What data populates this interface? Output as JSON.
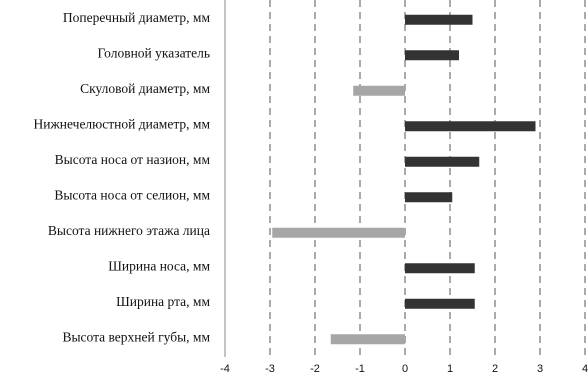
{
  "chart_data": {
    "type": "bar",
    "orientation": "horizontal",
    "categories": [
      "Поперечный диаметр, мм",
      "Головной указатель",
      "Скуловой диаметр, мм",
      "Нижнечелюстной диаметр, мм",
      "Высота носа от назион, мм",
      "Высота носа от селион, мм",
      "Высота нижнего этажа лица",
      "Ширина носа, мм",
      "Ширина рта, мм",
      "Высота верхней губы, мм"
    ],
    "values": [
      1.5,
      1.2,
      -1.15,
      2.9,
      1.65,
      1.05,
      -2.95,
      1.55,
      1.55,
      -1.65
    ],
    "colors": {
      "positive": "#333333",
      "negative": "#a6a6a6",
      "grid": "#555555",
      "border": "#888888"
    },
    "xlim": [
      -4,
      4
    ],
    "xticks": [
      "-4",
      "-3",
      "-2",
      "-1",
      "0",
      "1",
      "2",
      "3",
      "4"
    ],
    "grid": "vertical-dashed",
    "legend": "none"
  }
}
